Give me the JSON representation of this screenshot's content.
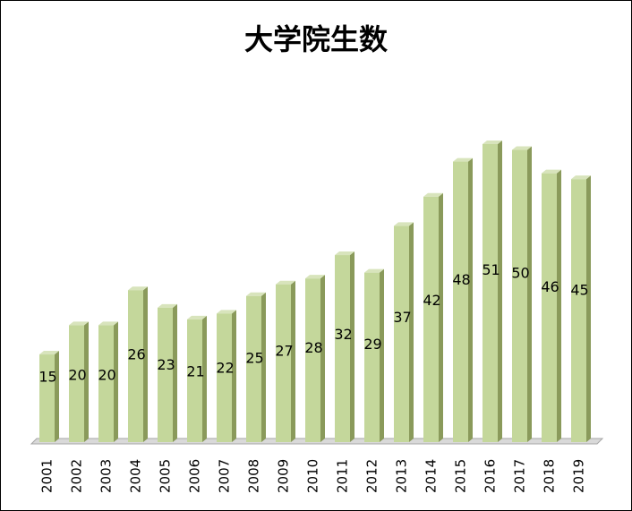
{
  "chart_data": {
    "type": "bar",
    "title": "大学院生数",
    "xlabel": "",
    "ylabel": "",
    "categories": [
      "2001",
      "2002",
      "2003",
      "2004",
      "2005",
      "2006",
      "2007",
      "2008",
      "2009",
      "2010",
      "2011",
      "2012",
      "2013",
      "2014",
      "2015",
      "2016",
      "2017",
      "2018",
      "2019"
    ],
    "values": [
      15,
      20,
      20,
      26,
      23,
      21,
      22,
      25,
      27,
      28,
      32,
      29,
      37,
      42,
      48,
      51,
      50,
      46,
      45
    ],
    "ylim": [
      0,
      51
    ],
    "grid": false,
    "legend": "none",
    "colors": {
      "bar_front": "#c4d79b",
      "bar_side": "#8a9a5b",
      "bar_top": "#d8e4bc",
      "floor": "#d9d9d9"
    }
  }
}
